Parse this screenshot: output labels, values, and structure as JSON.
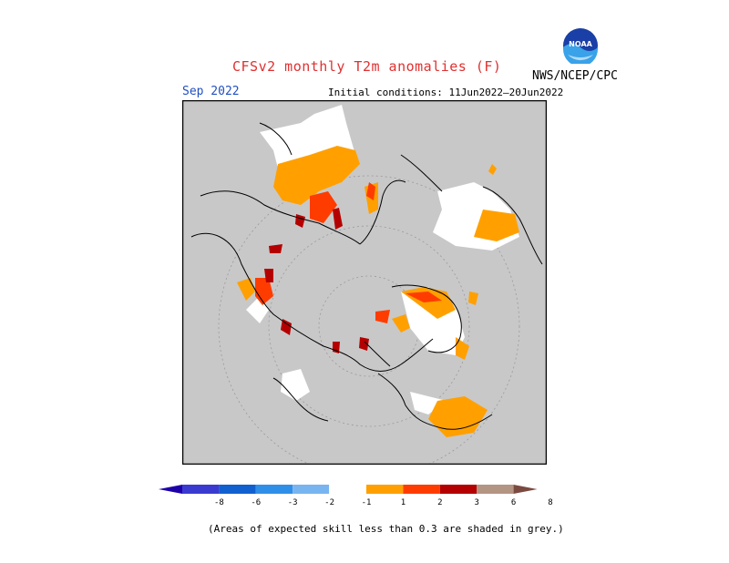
{
  "header": {
    "title": "CFSv2 monthly T2m anomalies (F)",
    "agency": "NWS/NCEP/CPC",
    "logo_text": "NOAA",
    "month": "Sep 2022",
    "initial_conditions": "Initial conditions: 11Jun2022–20Jun2022"
  },
  "map": {
    "projection": "polar stereographic (north pole)",
    "ocean_color": "#c8c8c8",
    "coast_color": "#000000"
  },
  "legend": {
    "labels": [
      "-8",
      "-6",
      "-3",
      "-2",
      "-1",
      "1",
      "2",
      "3",
      "6",
      "8"
    ],
    "colors": [
      "#1e00a8",
      "#3a3ad0",
      "#1060d0",
      "#2f8fe8",
      "#78b4f0",
      "#ffffff",
      "#ffa000",
      "#ff3c00",
      "#b40000",
      "#b49482",
      "#7a4a40"
    ]
  },
  "footnote": "(Areas of expected skill less than 0.3 are shaded in grey.)"
}
